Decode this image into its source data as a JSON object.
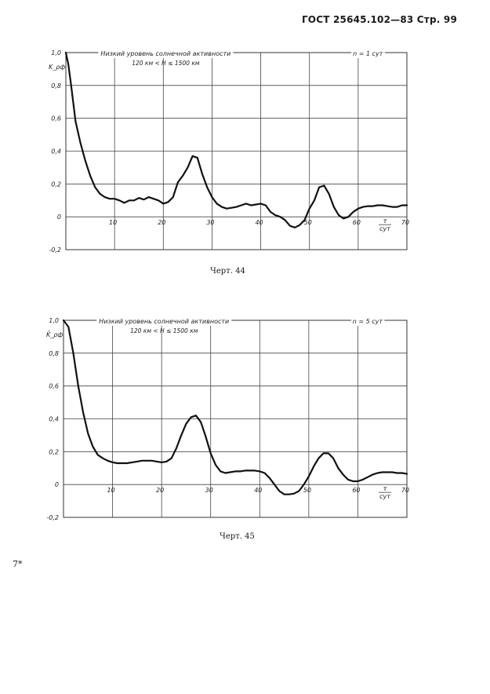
{
  "page": {
    "header": "ГОСТ 25645.102—83 Стр. 99",
    "page_mark": "7*"
  },
  "chart_data": [
    {
      "type": "line",
      "id": "chart-44",
      "caption": "Черт. 44",
      "title": "Низкий уровень солнечной активности",
      "subtitle": "120 км < H ≤ 1500 км",
      "annotation": "n = 1 сут",
      "ylabel": "K_ρф",
      "xlabel": "τ/сут",
      "xlim": [
        0,
        70
      ],
      "ylim": [
        -0.2,
        1.0
      ],
      "xticks": [
        10,
        20,
        30,
        40,
        50,
        60,
        70
      ],
      "yticks": [
        -0.2,
        0,
        0.2,
        0.4,
        0.6,
        0.8,
        1.0
      ],
      "ytick_labels": [
        "-0,2",
        "0",
        "0,2",
        "0,4",
        "0,6",
        "0,8",
        "1,0"
      ],
      "grid": true,
      "series": [
        {
          "x": [
            0,
            0.5,
            1,
            2,
            3,
            4,
            5,
            6,
            7,
            8,
            9,
            10,
            11,
            12,
            13,
            14,
            15,
            16,
            17,
            18,
            19,
            20,
            21,
            22,
            23,
            24,
            25,
            26,
            27,
            28,
            29,
            30,
            31,
            32,
            33,
            34,
            35,
            36,
            37,
            38,
            39,
            40,
            41,
            42,
            43,
            44,
            45,
            46,
            47,
            48,
            49,
            50,
            51,
            52,
            53,
            54,
            55,
            56,
            57,
            58,
            59,
            60,
            61,
            62,
            63,
            64,
            65,
            66,
            67,
            68,
            69,
            70
          ],
          "y": [
            1.0,
            0.93,
            0.82,
            0.58,
            0.45,
            0.34,
            0.25,
            0.18,
            0.14,
            0.12,
            0.11,
            0.11,
            0.1,
            0.085,
            0.1,
            0.1,
            0.115,
            0.105,
            0.12,
            0.11,
            0.1,
            0.08,
            0.09,
            0.12,
            0.21,
            0.25,
            0.3,
            0.37,
            0.36,
            0.26,
            0.18,
            0.12,
            0.08,
            0.06,
            0.05,
            0.055,
            0.06,
            0.07,
            0.08,
            0.07,
            0.075,
            0.08,
            0.07,
            0.03,
            0.01,
            0.0,
            -0.02,
            -0.055,
            -0.065,
            -0.05,
            -0.02,
            0.05,
            0.1,
            0.18,
            0.19,
            0.14,
            0.06,
            0.01,
            -0.01,
            0.0,
            0.03,
            0.05,
            0.06,
            0.065,
            0.065,
            0.07,
            0.07,
            0.065,
            0.06,
            0.06,
            0.07,
            0.07
          ]
        }
      ]
    },
    {
      "type": "line",
      "id": "chart-45",
      "caption": "Черт. 45",
      "title": "Низкий уровень солнечной активности",
      "subtitle": "120 км < H ≤ 1500 км",
      "annotation": "n = 5 сут",
      "ylabel": "K̄_ρф",
      "xlabel": "τ/сут",
      "xlim": [
        0,
        70
      ],
      "ylim": [
        -0.2,
        1.0
      ],
      "xticks": [
        10,
        20,
        30,
        40,
        50,
        60,
        70
      ],
      "yticks": [
        -0.2,
        0,
        0.2,
        0.4,
        0.6,
        0.8,
        1.0
      ],
      "ytick_labels": [
        "-0,2",
        "0",
        "0,2",
        "0,4",
        "0,6",
        "0,8",
        "1,0"
      ],
      "grid": true,
      "series": [
        {
          "x": [
            0,
            1,
            2,
            3,
            4,
            5,
            6,
            7,
            8,
            9,
            10,
            11,
            12,
            13,
            14,
            15,
            16,
            17,
            18,
            19,
            20,
            21,
            22,
            23,
            24,
            25,
            26,
            27,
            28,
            29,
            30,
            31,
            32,
            33,
            34,
            35,
            36,
            37,
            38,
            39,
            40,
            41,
            42,
            43,
            44,
            45,
            46,
            47,
            48,
            49,
            50,
            51,
            52,
            53,
            54,
            55,
            56,
            57,
            58,
            59,
            60,
            61,
            62,
            63,
            64,
            65,
            66,
            67,
            68,
            69,
            70
          ],
          "y": [
            1.0,
            0.96,
            0.8,
            0.6,
            0.44,
            0.31,
            0.23,
            0.18,
            0.16,
            0.145,
            0.135,
            0.13,
            0.13,
            0.13,
            0.135,
            0.14,
            0.145,
            0.145,
            0.145,
            0.14,
            0.135,
            0.14,
            0.16,
            0.22,
            0.3,
            0.37,
            0.41,
            0.42,
            0.38,
            0.29,
            0.19,
            0.12,
            0.08,
            0.07,
            0.075,
            0.08,
            0.08,
            0.085,
            0.085,
            0.085,
            0.08,
            0.07,
            0.04,
            0.0,
            -0.04,
            -0.06,
            -0.06,
            -0.055,
            -0.04,
            0.0,
            0.05,
            0.11,
            0.16,
            0.19,
            0.19,
            0.16,
            0.1,
            0.06,
            0.03,
            0.02,
            0.02,
            0.03,
            0.045,
            0.06,
            0.07,
            0.075,
            0.075,
            0.075,
            0.07,
            0.07,
            0.065
          ]
        }
      ]
    }
  ]
}
